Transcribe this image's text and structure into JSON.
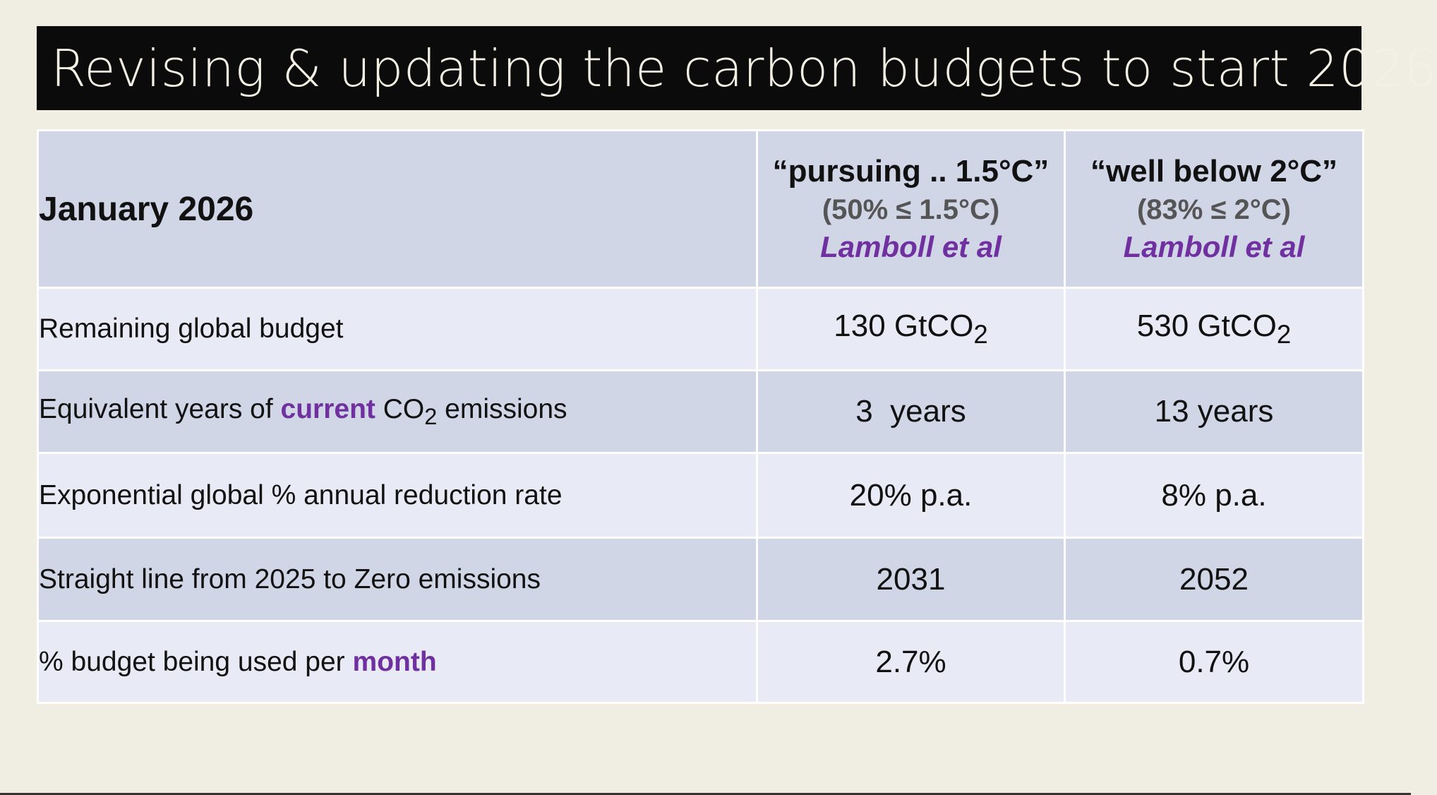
{
  "title": "Revising & updating the carbon budgets to start 2026",
  "table": {
    "header": {
      "label": "January 2026",
      "columns": [
        {
          "main": "“pursuing .. 1.5°C”",
          "sub": "(50% ≤ 1.5°C)",
          "source": "Lamboll et al"
        },
        {
          "main": "“well below 2°C”",
          "sub": "(83% ≤ 2°C)",
          "source": "Lamboll et al"
        }
      ]
    },
    "rows": [
      {
        "label": "Remaining global budget",
        "val_a_num": "130 GtCO",
        "val_a_sub": "2",
        "val_b_num": "530 GtCO",
        "val_b_sub": "2"
      },
      {
        "label_pre": "Equivalent years of ",
        "label_emph": "current",
        "label_mid": " CO",
        "label_sub": "2",
        "label_post": " emissions",
        "val_a": "3  years",
        "val_b": "13 years"
      },
      {
        "label": "Exponential global % annual reduction rate",
        "val_a": "20% p.a.",
        "val_b": "8% p.a."
      },
      {
        "label": "Straight line from 2025 to Zero emissions",
        "val_a": "2031",
        "val_b": "2052"
      },
      {
        "label_pre": "% budget being used per ",
        "label_emph": "month",
        "val_a": "2.7%",
        "val_b": "0.7%"
      }
    ]
  },
  "colors": {
    "background": "#f0ede3",
    "title_bar": "#0b0b0b",
    "title_text": "#f4f1e4",
    "header_row": "#d0d6e6",
    "row_light": "#e8ebf5",
    "row_dark": "#d0d6e6",
    "accent_purple": "#7030a0",
    "sub_gray": "#555555"
  }
}
